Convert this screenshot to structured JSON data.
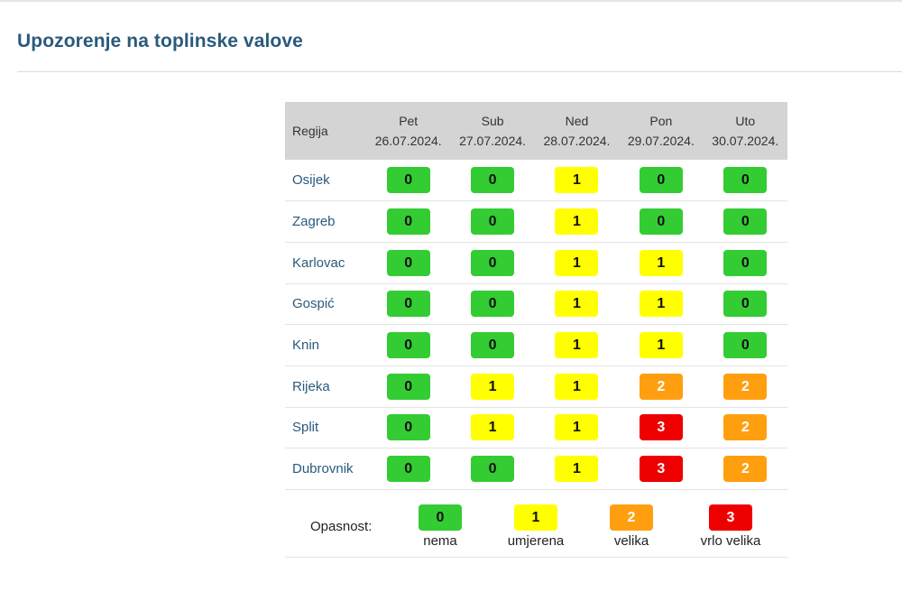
{
  "page": {
    "title": "Upozorenje na toplinske valove"
  },
  "table": {
    "region_header": "Regija",
    "days": [
      {
        "day": "Pet",
        "date": "26.07.2024."
      },
      {
        "day": "Sub",
        "date": "27.07.2024."
      },
      {
        "day": "Ned",
        "date": "28.07.2024."
      },
      {
        "day": "Pon",
        "date": "29.07.2024."
      },
      {
        "day": "Uto",
        "date": "30.07.2024."
      }
    ],
    "rows": [
      {
        "region": "Osijek",
        "levels": [
          0,
          0,
          1,
          0,
          0
        ]
      },
      {
        "region": "Zagreb",
        "levels": [
          0,
          0,
          1,
          0,
          0
        ]
      },
      {
        "region": "Karlovac",
        "levels": [
          0,
          0,
          1,
          1,
          0
        ]
      },
      {
        "region": "Gospić",
        "levels": [
          0,
          0,
          1,
          1,
          0
        ]
      },
      {
        "region": "Knin",
        "levels": [
          0,
          0,
          1,
          1,
          0
        ]
      },
      {
        "region": "Rijeka",
        "levels": [
          0,
          1,
          1,
          2,
          2
        ]
      },
      {
        "region": "Split",
        "levels": [
          0,
          1,
          1,
          3,
          2
        ]
      },
      {
        "region": "Dubrovnik",
        "levels": [
          0,
          0,
          1,
          3,
          2
        ]
      }
    ]
  },
  "legend": {
    "label": "Opasnost:",
    "items": [
      {
        "level": "0",
        "text": "nema"
      },
      {
        "level": "1",
        "text": "umjerena"
      },
      {
        "level": "2",
        "text": "velika"
      },
      {
        "level": "3",
        "text": "vrlo velika"
      }
    ]
  },
  "colors": {
    "level_0": "#33cc33",
    "level_1": "#ffff00",
    "level_2": "#ff9f10",
    "level_3": "#ee0000",
    "title": "#2a5a7c",
    "header_bg": "#d4d4d4"
  }
}
